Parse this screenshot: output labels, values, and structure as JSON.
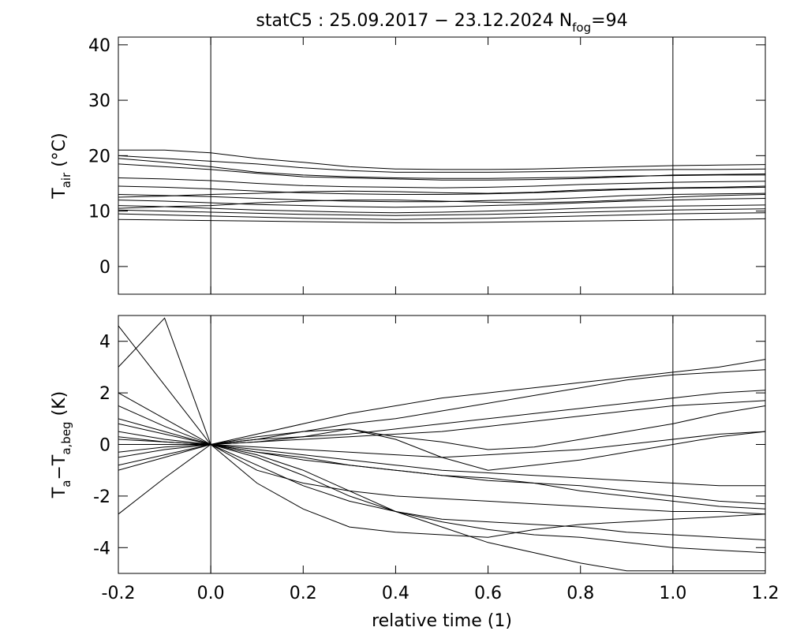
{
  "chart_data": [
    {
      "type": "line",
      "title": [
        {
          "text": "statC5 : 25.09.2017 − 23.12.2024 N"
        },
        {
          "text": "fog",
          "sub": true
        },
        {
          "text": "=94"
        }
      ],
      "ylabel": [
        {
          "text": "T"
        },
        {
          "text": "air",
          "sub": true
        },
        {
          "text": "  (°C)"
        }
      ],
      "color": "#000000",
      "xlim": [
        -0.2,
        1.2
      ],
      "ylim": [
        -5,
        41.4
      ],
      "xticks": [
        -0.2,
        0,
        0.2,
        0.4,
        0.6,
        0.8,
        1,
        1.2
      ],
      "xtick_labels": false,
      "yticks": [
        0,
        10,
        20,
        30,
        40
      ],
      "vlines": [
        0,
        1
      ],
      "x": [
        -0.2,
        -0.1,
        0,
        0.1,
        0.2,
        0.3,
        0.4,
        0.5,
        0.6,
        0.7,
        0.8,
        0.9,
        1,
        1.1,
        1.2
      ],
      "series": [
        {
          "values": [
            21,
            21,
            20.5,
            19.5,
            18.8,
            18,
            17.6,
            17.5,
            17.5,
            17.6,
            17.8,
            18,
            18.2,
            18.3,
            18.4
          ]
        },
        {
          "values": [
            20,
            19.5,
            19,
            18.5,
            17.8,
            17.3,
            17,
            17,
            17,
            17.1,
            17.2,
            17.4,
            17.5,
            17.5,
            17.6
          ]
        },
        {
          "values": [
            18.5,
            18,
            17.5,
            16.8,
            16.2,
            16,
            15.8,
            15.6,
            15.6,
            15.7,
            15.9,
            16.2,
            16.5,
            16.6,
            16.7
          ]
        },
        {
          "values": [
            16,
            15.8,
            15.5,
            15,
            14.6,
            14.4,
            14.3,
            14.2,
            14.3,
            14.5,
            14.8,
            15,
            15.2,
            15.3,
            15.4
          ]
        },
        {
          "values": [
            14.5,
            14.3,
            14,
            13.6,
            13.3,
            13.1,
            13,
            13,
            13.1,
            13.3,
            13.6,
            13.9,
            14.1,
            14.2,
            14.3
          ]
        },
        {
          "values": [
            13,
            12.8,
            12.6,
            12.3,
            12,
            11.8,
            11.7,
            11.7,
            11.9,
            12.1,
            12.4,
            12.8,
            13,
            13.1,
            13.2
          ]
        },
        {
          "values": [
            12,
            11.8,
            11.5,
            11.2,
            11,
            10.8,
            10.7,
            10.8,
            11,
            11.2,
            11.5,
            11.8,
            12,
            12.2,
            12.3
          ]
        },
        {
          "values": [
            11,
            10.8,
            10.5,
            10.2,
            10,
            9.8,
            9.7,
            9.8,
            10,
            10.2,
            10.5,
            10.7,
            10.9,
            11,
            11.1
          ]
        },
        {
          "values": [
            10.2,
            10,
            9.8,
            9.6,
            9.4,
            9.3,
            9.2,
            9.3,
            9.4,
            9.6,
            9.8,
            10,
            10.2,
            10.3,
            10.4
          ]
        },
        {
          "values": [
            9.5,
            9.3,
            9.1,
            8.9,
            8.7,
            8.6,
            8.5,
            8.6,
            8.7,
            8.9,
            9.1,
            9.3,
            9.5,
            9.6,
            9.7
          ]
        },
        {
          "values": [
            8.5,
            8.4,
            8.3,
            8.2,
            8.1,
            8,
            7.9,
            7.9,
            8,
            8.1,
            8.2,
            8.3,
            8.4,
            8.5,
            8.6
          ]
        },
        {
          "values": [
            19.5,
            18.8,
            18,
            17,
            16.5,
            16.2,
            16,
            15.9,
            15.9,
            16,
            16.1,
            16.3,
            16.4,
            16.5,
            16.5
          ]
        },
        {
          "values": [
            12.5,
            12.7,
            13,
            13.2,
            13.5,
            13.6,
            13.5,
            13.3,
            13.2,
            13.4,
            13.8,
            14,
            14.2,
            14.3,
            14.5
          ]
        },
        {
          "values": [
            10.5,
            10.8,
            11,
            11.5,
            11.8,
            12,
            12,
            11.8,
            11.6,
            11.5,
            11.7,
            12,
            12.5,
            12.8,
            13
          ]
        }
      ]
    },
    {
      "type": "line",
      "ylabel": [
        {
          "text": "T"
        },
        {
          "text": "a",
          "sub": true
        },
        {
          "text": "−T"
        },
        {
          "text": "a,beg",
          "sub": true
        },
        {
          "text": "  (K)"
        }
      ],
      "xlabel": "relative time (1)",
      "color": "#000000",
      "xlim": [
        -0.2,
        1.2
      ],
      "ylim": [
        -5,
        5
      ],
      "xticks": [
        -0.2,
        {
          "value": 0,
          "label": "0.0"
        },
        0.2,
        0.4,
        0.6,
        0.8,
        {
          "value": 1,
          "label": "1.0"
        },
        1.2
      ],
      "xtick_labels": true,
      "yticks": [
        -4,
        -2,
        0,
        2,
        4
      ],
      "vlines": [
        0,
        1
      ],
      "x": [
        -0.2,
        -0.1,
        0,
        0.1,
        0.2,
        0.3,
        0.4,
        0.5,
        0.6,
        0.7,
        0.8,
        0.9,
        1,
        1.1,
        1.2
      ],
      "series": [
        {
          "values": [
            4.6,
            2.3,
            0,
            -1.5,
            -2.5,
            -3.2,
            -3.4,
            -3.5,
            -3.6,
            -3.3,
            -3.1,
            -3.0,
            -2.9,
            -2.8,
            -2.7
          ]
        },
        {
          "values": [
            2,
            1,
            0,
            -0.3,
            -0.5,
            -0.8,
            -1,
            -1.2,
            -1.3,
            -1.5,
            -1.6,
            -1.8,
            -2,
            -2.2,
            -2.3
          ]
        },
        {
          "values": [
            -2.7,
            -1.3,
            0,
            0.2,
            0.3,
            0.4,
            0.6,
            0.8,
            1,
            1.2,
            1.4,
            1.6,
            1.8,
            2,
            2.1
          ]
        },
        {
          "values": [
            1,
            0.5,
            0,
            0.4,
            0.8,
            1.2,
            1.5,
            1.8,
            2,
            2.2,
            2.4,
            2.6,
            2.8,
            3,
            3.3
          ]
        },
        {
          "values": [
            0.5,
            0.2,
            0,
            -0.4,
            -1,
            -1.8,
            -2.6,
            -3.2,
            -3.8,
            -4.2,
            -4.6,
            -4.9,
            -4.9,
            -4.9,
            -4.9
          ]
        },
        {
          "values": [
            -1,
            -0.5,
            0,
            -0.2,
            -0.4,
            -0.6,
            -0.8,
            -1,
            -1.1,
            -1.2,
            -1.3,
            -1.4,
            -1.5,
            -1.6,
            -1.6
          ]
        },
        {
          "values": [
            0.3,
            0.1,
            0,
            0.1,
            0.2,
            0.3,
            0.4,
            0.5,
            0.7,
            0.9,
            1.1,
            1.3,
            1.5,
            1.6,
            1.7
          ]
        },
        {
          "values": [
            -0.5,
            -0.2,
            0,
            -0.8,
            -1.6,
            -2.2,
            -2.6,
            -2.9,
            -3,
            -3.1,
            -3.2,
            -3.4,
            -3.5,
            -3.6,
            -3.7
          ]
        },
        {
          "values": [
            1.5,
            0.7,
            0,
            0.1,
            0.3,
            0.6,
            0.2,
            -0.5,
            -1,
            -0.8,
            -0.6,
            -0.3,
            0,
            0.3,
            0.5
          ]
        },
        {
          "values": [
            0.8,
            0.4,
            0,
            -0.1,
            -0.2,
            -0.3,
            -0.4,
            -0.5,
            -0.4,
            -0.3,
            -0.2,
            0,
            0.2,
            0.4,
            0.5
          ]
        },
        {
          "values": [
            -0.3,
            -0.1,
            0,
            -0.5,
            -1.2,
            -2,
            -2.6,
            -3,
            -3.3,
            -3.5,
            -3.6,
            -3.8,
            -4,
            -4.1,
            -4.2
          ]
        },
        {
          "values": [
            0.2,
            0.1,
            0,
            0.3,
            0.5,
            0.8,
            1,
            1.3,
            1.6,
            1.9,
            2.2,
            2.5,
            2.7,
            2.8,
            2.9
          ]
        },
        {
          "values": [
            -0.8,
            -0.4,
            0,
            -0.3,
            -0.6,
            -0.8,
            -1,
            -1.2,
            -1.4,
            -1.5,
            -1.8,
            -2,
            -2.2,
            -2.4,
            -2.5
          ]
        },
        {
          "values": [
            3,
            4.9,
            0,
            -1,
            -1.5,
            -1.8,
            -2,
            -2.1,
            -2.2,
            -2.3,
            -2.4,
            -2.5,
            -2.6,
            -2.6,
            -2.7
          ]
        },
        {
          "values": [
            0,
            0,
            0,
            0.2,
            0.5,
            0.6,
            0.3,
            0.1,
            -0.2,
            -0.1,
            0.2,
            0.5,
            0.8,
            1.2,
            1.5
          ]
        }
      ]
    }
  ]
}
